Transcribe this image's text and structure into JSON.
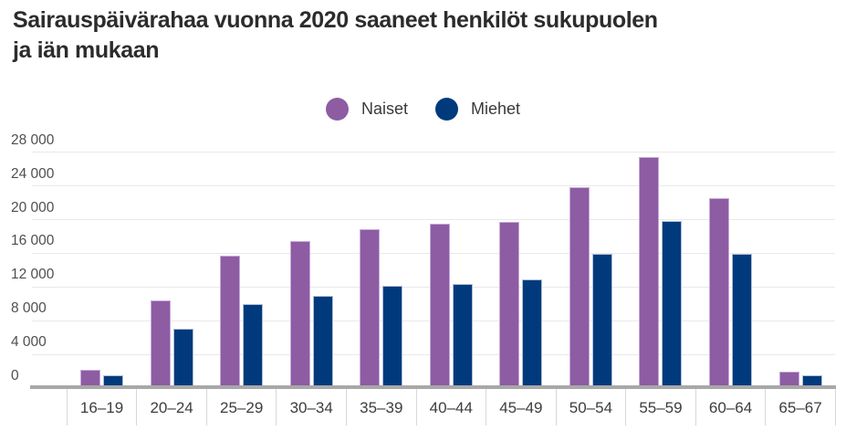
{
  "title": "Sairauspäivärahaa vuonna 2020 saaneet henkilöt sukupuolen ja iän mukaan",
  "title_lines": [
    "Sairauspäivärahaa vuonna 2020 saaneet henkilöt sukupuolen",
    "ja iän mukaan"
  ],
  "legend": {
    "items": [
      {
        "label": "Naiset",
        "color": "#8d5ca3"
      },
      {
        "label": "Miehet",
        "color": "#003a7c"
      }
    ]
  },
  "colors": {
    "naiset": "#8d5ca3",
    "miehet": "#003a7c",
    "gridline": "#e9e9e9",
    "axis": "#a8a8a8",
    "title_text": "#2c2c2c",
    "axis_text": "#4f4f4f"
  },
  "chart_data": {
    "type": "bar",
    "title": "Sairauspäivärahaa vuonna 2020 saaneet henkilöt sukupuolen ja iän mukaan",
    "categories": [
      "16–19",
      "20–24",
      "25–29",
      "30–34",
      "35–39",
      "40–44",
      "45–49",
      "50–54",
      "55–59",
      "60–64",
      "65–67"
    ],
    "series": [
      {
        "name": "Naiset",
        "color": "#8d5ca3",
        "values": [
          2200,
          10400,
          15700,
          17400,
          18900,
          19500,
          19700,
          23900,
          27400,
          22600,
          2000
        ]
      },
      {
        "name": "Miehet",
        "color": "#003a7c",
        "values": [
          1500,
          7100,
          10000,
          10900,
          12100,
          12400,
          12900,
          15900,
          19800,
          15900,
          1500
        ]
      }
    ],
    "xlabel": "",
    "ylabel": "",
    "ylim": [
      0,
      28000
    ],
    "ytick_step": 4000,
    "ytick_labels": [
      "0",
      "4 000",
      "8 000",
      "12 000",
      "16 000",
      "20 000",
      "24 000",
      "28 000"
    ],
    "grid": true,
    "legend_position": "top-center"
  }
}
